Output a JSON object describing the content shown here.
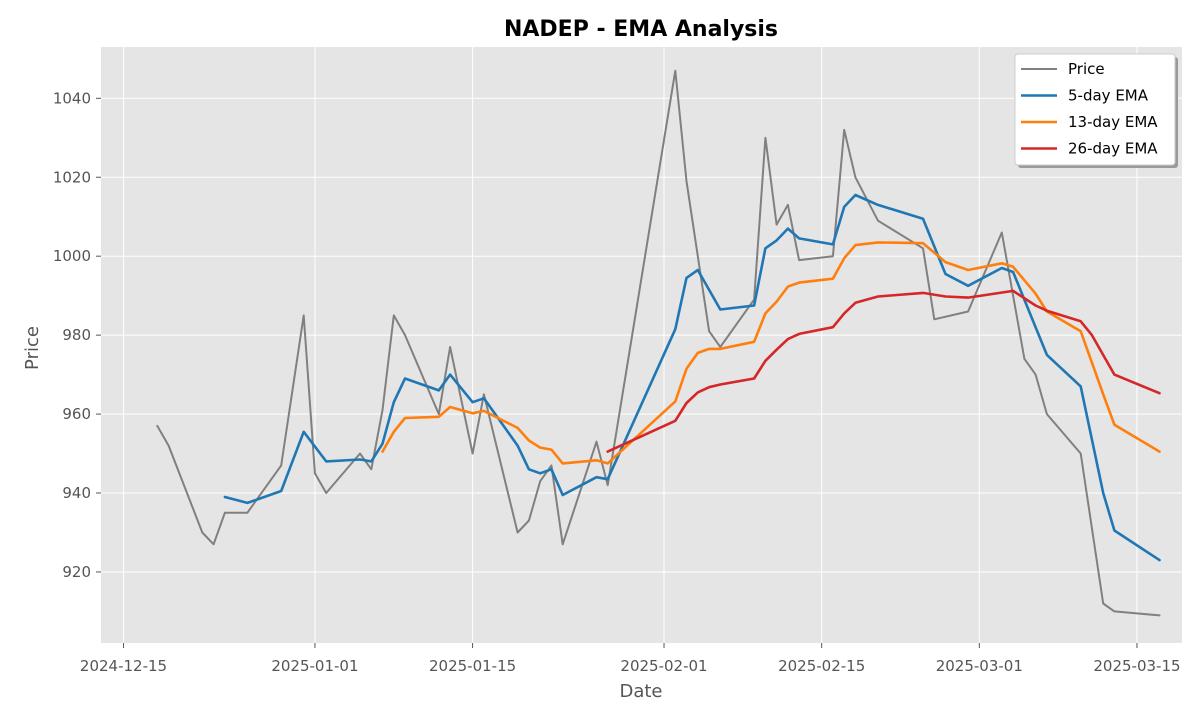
{
  "chart_data": {
    "type": "line",
    "title": "NADEP - EMA Analysis",
    "xlabel": "Date",
    "ylabel": "Price",
    "xlim": [
      "2024-12-13",
      "2025-03-19"
    ],
    "ylim": [
      902,
      1053
    ],
    "x_ticks": [
      "2024-12-15",
      "2025-01-01",
      "2025-01-15",
      "2025-02-01",
      "2025-02-15",
      "2025-03-01",
      "2025-03-15"
    ],
    "y_ticks": [
      920,
      940,
      960,
      980,
      1000,
      1020,
      1040
    ],
    "grid": true,
    "legend": "top-right",
    "series": [
      {
        "name": "Price",
        "color": "#808080",
        "points": [
          [
            "2024-12-18",
            957
          ],
          [
            "2024-12-19",
            952
          ],
          [
            "2024-12-22",
            930
          ],
          [
            "2024-12-23",
            927
          ],
          [
            "2024-12-24",
            935
          ],
          [
            "2024-12-26",
            935
          ],
          [
            "2024-12-29",
            947
          ],
          [
            "2024-12-31",
            985
          ],
          [
            "2025-01-01",
            945
          ],
          [
            "2025-01-02",
            940
          ],
          [
            "2025-01-05",
            950
          ],
          [
            "2025-01-06",
            946
          ],
          [
            "2025-01-07",
            961
          ],
          [
            "2025-01-08",
            985
          ],
          [
            "2025-01-09",
            980
          ],
          [
            "2025-01-12",
            960
          ],
          [
            "2025-01-13",
            977
          ],
          [
            "2025-01-15",
            950
          ],
          [
            "2025-01-16",
            965
          ],
          [
            "2025-01-19",
            930
          ],
          [
            "2025-01-20",
            933
          ],
          [
            "2025-01-21",
            943
          ],
          [
            "2025-01-22",
            947
          ],
          [
            "2025-01-23",
            927
          ],
          [
            "2025-01-26",
            953
          ],
          [
            "2025-01-27",
            942
          ],
          [
            "2025-02-02",
            1047
          ],
          [
            "2025-02-03",
            1019
          ],
          [
            "2025-02-05",
            981
          ],
          [
            "2025-02-06",
            977
          ],
          [
            "2025-02-09",
            989
          ],
          [
            "2025-02-10",
            1030
          ],
          [
            "2025-02-11",
            1008
          ],
          [
            "2025-02-12",
            1013
          ],
          [
            "2025-02-13",
            999
          ],
          [
            "2025-02-16",
            1000
          ],
          [
            "2025-02-17",
            1032
          ],
          [
            "2025-02-18",
            1020
          ],
          [
            "2025-02-20",
            1009
          ],
          [
            "2025-02-24",
            1002
          ],
          [
            "2025-02-25",
            984
          ],
          [
            "2025-02-28",
            986
          ],
          [
            "2025-03-03",
            1006
          ],
          [
            "2025-03-05",
            974
          ],
          [
            "2025-03-06",
            970
          ],
          [
            "2025-03-07",
            960
          ],
          [
            "2025-03-10",
            950
          ],
          [
            "2025-03-12",
            912
          ],
          [
            "2025-03-13",
            910
          ],
          [
            "2025-03-17",
            909
          ]
        ]
      },
      {
        "name": "5-day EMA",
        "color": "#1f77b4",
        "points": [
          [
            "2024-12-24",
            939
          ],
          [
            "2024-12-26",
            937.5
          ],
          [
            "2024-12-29",
            940.5
          ],
          [
            "2024-12-31",
            955.5
          ],
          [
            "2025-01-02",
            948
          ],
          [
            "2025-01-05",
            948.5
          ],
          [
            "2025-01-06",
            948
          ],
          [
            "2025-01-07",
            952.5
          ],
          [
            "2025-01-08",
            963
          ],
          [
            "2025-01-09",
            969
          ],
          [
            "2025-01-12",
            966
          ],
          [
            "2025-01-13",
            970
          ],
          [
            "2025-01-15",
            963
          ],
          [
            "2025-01-16",
            964
          ],
          [
            "2025-01-19",
            952
          ],
          [
            "2025-01-20",
            946
          ],
          [
            "2025-01-21",
            945
          ],
          [
            "2025-01-22",
            946
          ],
          [
            "2025-01-23",
            939.5
          ],
          [
            "2025-01-26",
            944
          ],
          [
            "2025-01-27",
            943.5
          ],
          [
            "2025-02-02",
            981.5
          ],
          [
            "2025-02-03",
            994.5
          ],
          [
            "2025-02-04",
            996.5
          ],
          [
            "2025-02-06",
            986.5
          ],
          [
            "2025-02-09",
            987.5
          ],
          [
            "2025-02-10",
            1002
          ],
          [
            "2025-02-11",
            1004
          ],
          [
            "2025-02-12",
            1007
          ],
          [
            "2025-02-13",
            1004.5
          ],
          [
            "2025-02-16",
            1003
          ],
          [
            "2025-02-17",
            1012.5
          ],
          [
            "2025-02-18",
            1015.5
          ],
          [
            "2025-02-20",
            1013
          ],
          [
            "2025-02-24",
            1009.5
          ],
          [
            "2025-02-26",
            995.5
          ],
          [
            "2025-02-28",
            992.5
          ],
          [
            "2025-03-03",
            997
          ],
          [
            "2025-03-04",
            996
          ],
          [
            "2025-03-06",
            982
          ],
          [
            "2025-03-07",
            975
          ],
          [
            "2025-03-10",
            967
          ],
          [
            "2025-03-12",
            940
          ],
          [
            "2025-03-13",
            930.5
          ],
          [
            "2025-03-17",
            923
          ]
        ]
      },
      {
        "name": "13-day EMA",
        "color": "#ff7f0e",
        "points": [
          [
            "2025-01-07",
            950.5
          ],
          [
            "2025-01-08",
            955.5
          ],
          [
            "2025-01-09",
            959
          ],
          [
            "2025-01-12",
            959.3
          ],
          [
            "2025-01-13",
            961.8
          ],
          [
            "2025-01-15",
            960.2
          ],
          [
            "2025-01-16",
            960.8
          ],
          [
            "2025-01-19",
            956.5
          ],
          [
            "2025-01-20",
            953.3
          ],
          [
            "2025-01-21",
            951.5
          ],
          [
            "2025-01-22",
            951
          ],
          [
            "2025-01-23",
            947.5
          ],
          [
            "2025-01-26",
            948.3
          ],
          [
            "2025-01-27",
            947.5
          ],
          [
            "2025-02-02",
            963.2
          ],
          [
            "2025-02-03",
            971.5
          ],
          [
            "2025-02-04",
            975.5
          ],
          [
            "2025-02-05",
            976.5
          ],
          [
            "2025-02-06",
            976.5
          ],
          [
            "2025-02-09",
            978.3
          ],
          [
            "2025-02-10",
            985.5
          ],
          [
            "2025-02-11",
            988.5
          ],
          [
            "2025-02-12",
            992.3
          ],
          [
            "2025-02-13",
            993.3
          ],
          [
            "2025-02-16",
            994.3
          ],
          [
            "2025-02-17",
            999.5
          ],
          [
            "2025-02-18",
            1002.8
          ],
          [
            "2025-02-20",
            1003.5
          ],
          [
            "2025-02-24",
            1003.3
          ],
          [
            "2025-02-26",
            998.5
          ],
          [
            "2025-02-28",
            996.5
          ],
          [
            "2025-03-03",
            998.2
          ],
          [
            "2025-03-04",
            997.3
          ],
          [
            "2025-03-06",
            990.5
          ],
          [
            "2025-03-07",
            986
          ],
          [
            "2025-03-10",
            981
          ],
          [
            "2025-03-12",
            965
          ],
          [
            "2025-03-13",
            957.3
          ],
          [
            "2025-03-17",
            950.5
          ]
        ]
      },
      {
        "name": "26-day EMA",
        "color": "#d62728",
        "points": [
          [
            "2025-01-27",
            950.5
          ],
          [
            "2025-02-02",
            958.3
          ],
          [
            "2025-02-03",
            962.8
          ],
          [
            "2025-02-04",
            965.5
          ],
          [
            "2025-02-05",
            966.8
          ],
          [
            "2025-02-06",
            967.5
          ],
          [
            "2025-02-09",
            969
          ],
          [
            "2025-02-10",
            973.5
          ],
          [
            "2025-02-11",
            976.3
          ],
          [
            "2025-02-12",
            979
          ],
          [
            "2025-02-13",
            980.3
          ],
          [
            "2025-02-16",
            982
          ],
          [
            "2025-02-17",
            985.5
          ],
          [
            "2025-02-18",
            988.2
          ],
          [
            "2025-02-20",
            989.8
          ],
          [
            "2025-02-24",
            990.7
          ],
          [
            "2025-02-26",
            989.8
          ],
          [
            "2025-02-28",
            989.5
          ],
          [
            "2025-03-04",
            991.2
          ],
          [
            "2025-03-06",
            987.5
          ],
          [
            "2025-03-07",
            986.2
          ],
          [
            "2025-03-10",
            983.5
          ],
          [
            "2025-03-11",
            980
          ],
          [
            "2025-03-13",
            970
          ],
          [
            "2025-03-17",
            965.3
          ]
        ]
      }
    ]
  }
}
